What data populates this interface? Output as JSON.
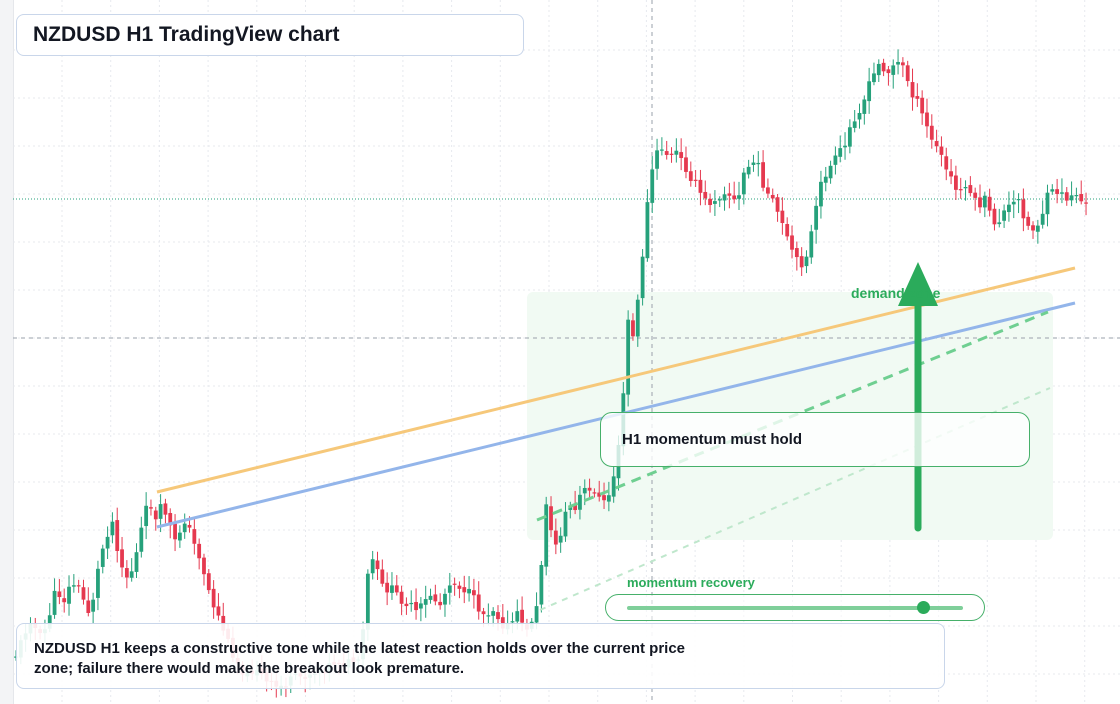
{
  "header": {
    "title": "NZDUSD H1 TradingView chart"
  },
  "annotations": {
    "callout": "H1 momentum must hold",
    "demand_label": "demand zone",
    "momentum_label": "momentum recovery",
    "slider_level": 0.88
  },
  "summary": {
    "text": "NZDUSD H1 keeps a constructive tone while the latest reaction holds over the current price zone; failure there would make the breakout look premature."
  },
  "colors": {
    "bull": "#26a17b",
    "bear": "#e5394f",
    "upper_line": "#f6c87a",
    "lower_line": "#93b5ea",
    "green": "#2bab5b"
  },
  "chart_data": {
    "type": "candlestick",
    "symbol": "NZDUSD",
    "timeframe": "H1",
    "trend": "range at left, breakout, rally to high, pullback"
  }
}
